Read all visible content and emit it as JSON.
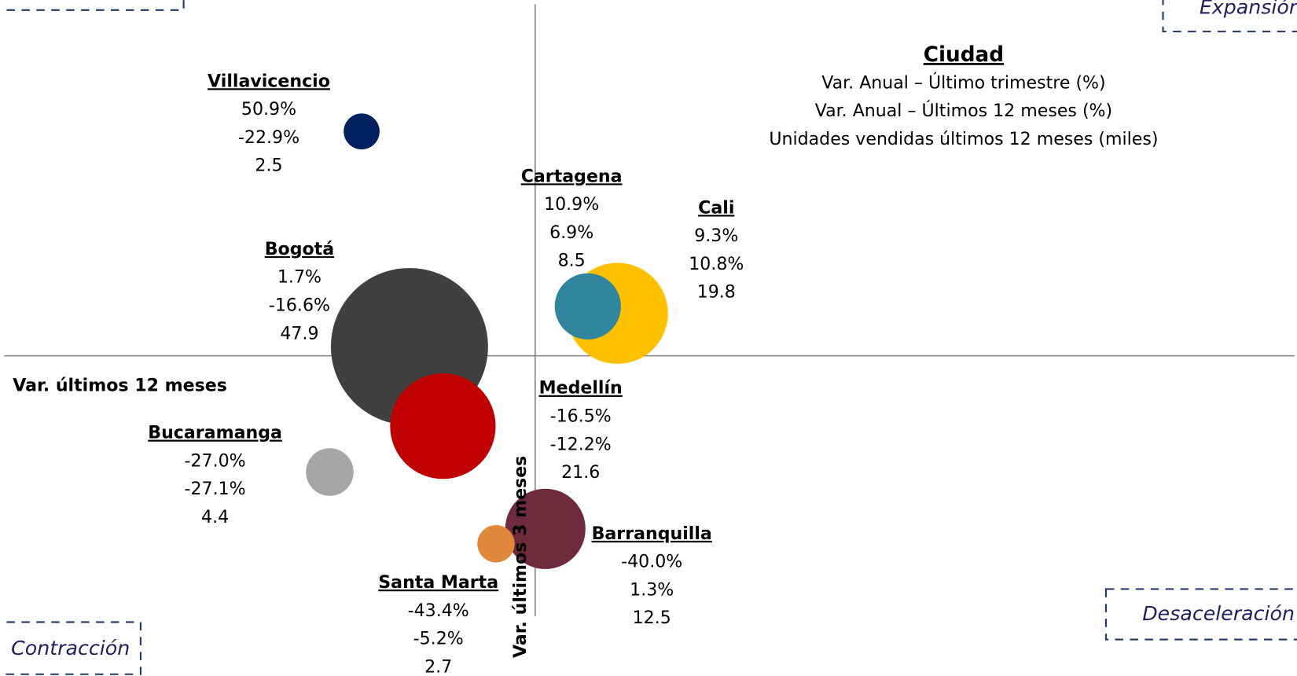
{
  "chart_data": {
    "type": "bubble",
    "xlabel": "Var. últimos 12 meses",
    "ylabel": "Var. últimos 3 meses",
    "xlim": [
      -70,
      100
    ],
    "ylim": [
      -60,
      80
    ],
    "legend": {
      "title": "Ciudad",
      "lines": [
        "Var. Anual – Último trimestre (%)",
        "Var. Anual – Últimos 12 meses (%)",
        "Unidades vendidas últimos 12 meses (miles)"
      ]
    },
    "quadrants": {
      "top_right": "Expansión",
      "bottom_right": "Desaceleración",
      "bottom_left": "Contracción"
    },
    "series": [
      {
        "name": "Bogotá",
        "color": "#404040",
        "x": -16.6,
        "y": 1.7,
        "size": 47.9,
        "x_label": "-16.6%",
        "y_label": "1.7%"
      },
      {
        "name": "Medellín",
        "color": "#c00000",
        "x": -12.2,
        "y": -16.5,
        "size": 21.6,
        "x_label": "-12.2%",
        "y_label": "-16.5%"
      },
      {
        "name": "Cali",
        "color": "#ffc000",
        "x": 10.8,
        "y": 9.3,
        "size": 19.8,
        "x_label": "10.8%",
        "y_label": "9.3%"
      },
      {
        "name": "Cartagena",
        "color": "#31859c",
        "x": 6.9,
        "y": 10.9,
        "size": 8.5,
        "x_label": "6.9%",
        "y_label": "10.9%"
      },
      {
        "name": "Barranquilla",
        "color": "#6d2b3d",
        "x": 1.3,
        "y": -40.0,
        "size": 12.5,
        "x_label": "1.3%",
        "y_label": "-40.0%"
      },
      {
        "name": "Santa Marta",
        "color": "#e0883b",
        "x": -5.2,
        "y": -43.4,
        "size": 2.7,
        "x_label": "-5.2%",
        "y_label": "-43.4%"
      },
      {
        "name": "Bucaramanga",
        "color": "#a6a6a6",
        "x": -27.1,
        "y": -27.0,
        "size": 4.4,
        "x_label": "-27.1%",
        "y_label": "-27.0%"
      },
      {
        "name": "Villavicencio",
        "color": "#002060",
        "x": -22.9,
        "y": 50.9,
        "size": 2.5,
        "x_label": "-22.9%",
        "y_label": "50.9%"
      }
    ]
  }
}
